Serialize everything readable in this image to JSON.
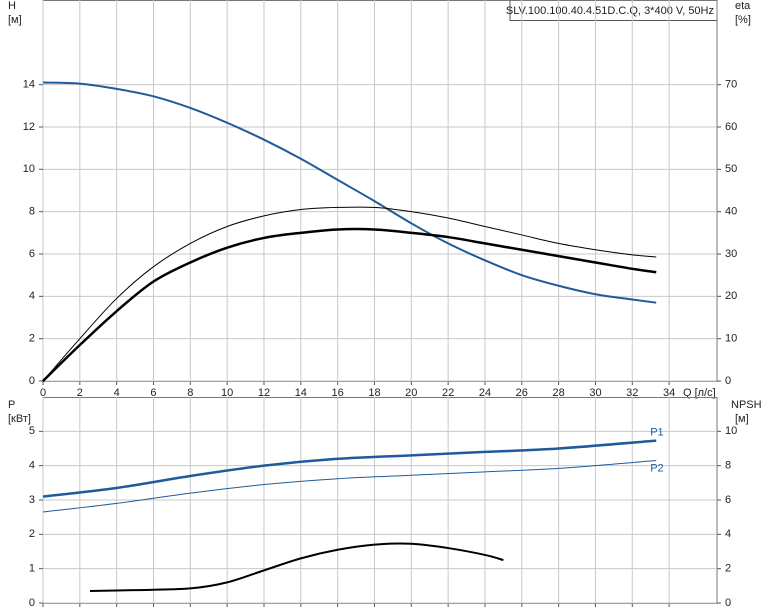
{
  "chart_data": [
    {
      "type": "line",
      "title": "SLV.100.100.40.4.51D.C.Q, 3*400 V, 50Hz",
      "y_label": "H",
      "y_unit": "[м]",
      "y2_label": "eta",
      "y2_unit": "[%]",
      "x_label": "Q [л/с]",
      "xlim": [
        0,
        36.6
      ],
      "xticks": [
        0,
        2,
        4,
        6,
        8,
        10,
        12,
        14,
        16,
        18,
        20,
        22,
        24,
        26,
        28,
        30,
        32,
        34
      ],
      "ylim": [
        0,
        18
      ],
      "yticks": [
        0,
        2,
        4,
        6,
        8,
        10,
        12,
        14
      ],
      "y2lim": [
        0,
        90
      ],
      "y2ticks": [
        0,
        10,
        20,
        30,
        40,
        50,
        60,
        70
      ],
      "grid": true,
      "xtick_labels": true,
      "series": [
        {
          "color": "#1f5b9a",
          "width": 2,
          "x": [
            0,
            2,
            4,
            6,
            8,
            10,
            12,
            14,
            16,
            18,
            20,
            22,
            24,
            26,
            28,
            30,
            32,
            33.3
          ],
          "values": [
            14.1,
            14.05,
            13.8,
            13.45,
            12.9,
            12.2,
            11.4,
            10.5,
            9.5,
            8.5,
            7.45,
            6.5,
            5.7,
            5.0,
            4.5,
            4.1,
            3.85,
            3.7
          ]
        },
        {
          "color": "#000000",
          "width": 1,
          "axis": "y2",
          "x": [
            0,
            2,
            4,
            6,
            8,
            10,
            12,
            14,
            16,
            18,
            20,
            22,
            24,
            26,
            28,
            30,
            32,
            33.3
          ],
          "values": [
            0,
            10,
            19.5,
            27,
            32.5,
            36.5,
            39,
            40.5,
            41,
            41,
            40,
            38.5,
            36.5,
            34.5,
            32.5,
            31,
            29.8,
            29.3
          ]
        },
        {
          "color": "#000000",
          "width": 2.5,
          "axis": "y2",
          "x": [
            0,
            2,
            4,
            6,
            8,
            10,
            12,
            14,
            16,
            18,
            20,
            22,
            24,
            26,
            28,
            30,
            32,
            33.3
          ],
          "values": [
            0,
            8.5,
            16.5,
            23.5,
            28,
            31.5,
            33.8,
            35,
            35.8,
            35.8,
            35,
            34,
            32.5,
            31,
            29.5,
            28,
            26.5,
            25.7
          ]
        }
      ]
    },
    {
      "type": "line",
      "y_label": "P",
      "y_unit": "[кВт]",
      "y2_label": "NPSH",
      "y2_unit": "[м]",
      "xlim": [
        0,
        36.6
      ],
      "xticks": [
        0,
        2,
        4,
        6,
        8,
        10,
        12,
        14,
        16,
        18,
        20,
        22,
        24,
        26,
        28,
        30,
        32,
        34
      ],
      "ylim": [
        0,
        6
      ],
      "yticks": [
        0,
        1,
        2,
        3,
        4,
        5
      ],
      "y2lim": [
        0,
        12
      ],
      "y2ticks": [
        0,
        2,
        4,
        6,
        8,
        10
      ],
      "grid": true,
      "xtick_labels": false,
      "series": [
        {
          "name": "P1",
          "color": "#1f5b9a",
          "width": 2.5,
          "x": [
            0,
            4,
            8,
            12,
            16,
            20,
            24,
            28,
            33.3
          ],
          "values": [
            3.1,
            3.35,
            3.7,
            4.0,
            4.2,
            4.3,
            4.4,
            4.5,
            4.73
          ]
        },
        {
          "name": "P2",
          "color": "#1f5b9a",
          "width": 1,
          "x": [
            0,
            4,
            8,
            12,
            16,
            20,
            24,
            28,
            33.3
          ],
          "values": [
            2.65,
            2.9,
            3.2,
            3.45,
            3.62,
            3.72,
            3.82,
            3.92,
            4.15
          ]
        },
        {
          "color": "#000000",
          "width": 2,
          "axis": "y2",
          "x": [
            2.55,
            5,
            8,
            10,
            12,
            14,
            16,
            18,
            20,
            22,
            24,
            25
          ],
          "values": [
            0.7,
            0.75,
            0.85,
            1.2,
            1.9,
            2.6,
            3.1,
            3.4,
            3.45,
            3.2,
            2.8,
            2.5
          ]
        }
      ]
    }
  ]
}
